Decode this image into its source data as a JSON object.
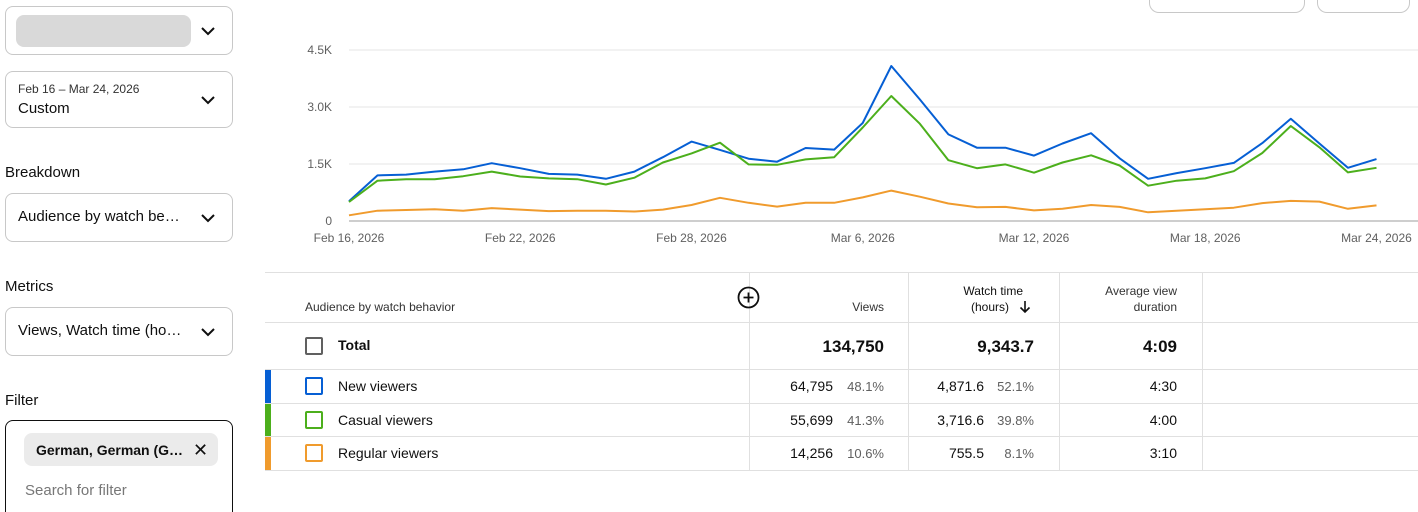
{
  "controls": {
    "date_range": {
      "range": "Feb 16 – Mar 24, 2026",
      "preset": "Custom"
    },
    "breakdown": {
      "label": "Breakdown",
      "value": "Audience by watch be…"
    },
    "metrics": {
      "label": "Metrics",
      "value": "Views, Watch time (ho…"
    },
    "filter": {
      "label": "Filter",
      "chip": "German, German (G…",
      "placeholder": "Search for filter"
    }
  },
  "colors": {
    "new_viewers": "#065fd4",
    "casual_viewers": "#4caf1c",
    "regular_viewers": "#f09b2d"
  },
  "chart_data": {
    "type": "line",
    "x_tick_labels": [
      "Feb 16, 2026",
      "Feb 22, 2026",
      "Feb 28, 2026",
      "Mar 6, 2026",
      "Mar 12, 2026",
      "Mar 18, 2026",
      "Mar 24, 2026"
    ],
    "x_start": "2026-02-16",
    "x_end": "2026-03-25",
    "y_tick_labels": [
      "0",
      "1.5K",
      "3.0K",
      "4.5K"
    ],
    "ylim": [
      0,
      4500
    ],
    "grid": true,
    "series": [
      {
        "name": "New viewers",
        "color": "#065fd4",
        "values": [
          520,
          1200,
          1220,
          1300,
          1360,
          1520,
          1390,
          1240,
          1220,
          1110,
          1300,
          1680,
          2090,
          1870,
          1640,
          1560,
          1920,
          1880,
          2580,
          4080,
          3200,
          2280,
          1930,
          1930,
          1720,
          2040,
          2310,
          1650,
          1110,
          1260,
          1390,
          1530,
          2050,
          2690,
          2040,
          1400,
          1630
        ]
      },
      {
        "name": "Casual viewers",
        "color": "#4caf1c",
        "values": [
          500,
          1060,
          1100,
          1100,
          1180,
          1300,
          1170,
          1120,
          1100,
          960,
          1140,
          1540,
          1780,
          2060,
          1490,
          1480,
          1620,
          1680,
          2460,
          3290,
          2560,
          1600,
          1390,
          1490,
          1270,
          1540,
          1730,
          1460,
          930,
          1060,
          1120,
          1310,
          1790,
          2500,
          1940,
          1280,
          1400
        ]
      },
      {
        "name": "Regular viewers",
        "color": "#f09b2d",
        "values": [
          150,
          270,
          290,
          310,
          270,
          340,
          300,
          260,
          270,
          270,
          250,
          300,
          420,
          610,
          480,
          380,
          480,
          480,
          620,
          800,
          640,
          460,
          360,
          370,
          280,
          320,
          420,
          370,
          230,
          270,
          310,
          350,
          470,
          530,
          510,
          320,
          410
        ]
      }
    ]
  },
  "table": {
    "headers": {
      "dimension": "Audience by watch behavior",
      "views": "Views",
      "watch_time_1": "Watch time",
      "watch_time_2": "(hours)",
      "avd_1": "Average view",
      "avd_2": "duration"
    },
    "total": {
      "label": "Total",
      "views": "134,750",
      "watch_time": "9,343.7",
      "avd": "4:09"
    },
    "rows": [
      {
        "name": "New viewers",
        "views": "64,795",
        "views_pct": "48.1%",
        "watch_time": "4,871.6",
        "watch_pct": "52.1%",
        "avd": "4:30"
      },
      {
        "name": "Casual viewers",
        "views": "55,699",
        "views_pct": "41.3%",
        "watch_time": "3,716.6",
        "watch_pct": "39.8%",
        "avd": "4:00"
      },
      {
        "name": "Regular viewers",
        "views": "14,256",
        "views_pct": "10.6%",
        "watch_time": "755.5",
        "watch_pct": "8.1%",
        "avd": "3:10"
      }
    ]
  }
}
